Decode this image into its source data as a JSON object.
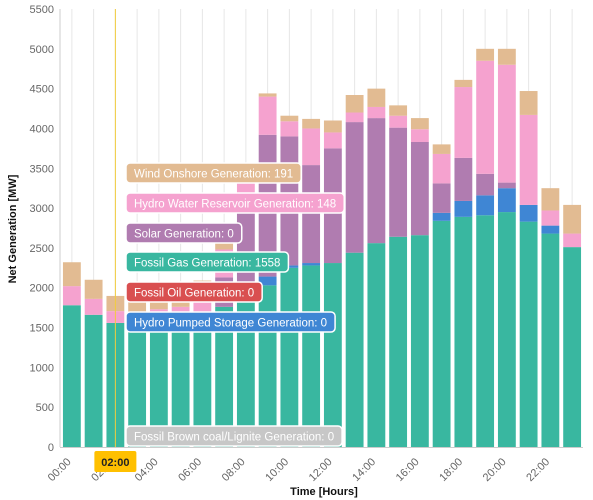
{
  "chart_data": {
    "type": "bar",
    "stacked": true,
    "xlabel": "Time [Hours]",
    "ylabel": "Net Generation [MW]",
    "ylim": [
      0,
      5500
    ],
    "yticks": [
      0,
      500,
      1000,
      1500,
      2000,
      2500,
      3000,
      3500,
      4000,
      4500,
      5000,
      5500
    ],
    "x_tick_labels": [
      "00:00",
      "02:00",
      "04:00",
      "06:00",
      "08:00",
      "10:00",
      "12:00",
      "14:00",
      "16:00",
      "18:00",
      "20:00",
      "22:00"
    ],
    "grid": "vertical",
    "cursor_label": "02:00",
    "categories": [
      "00:00",
      "01:00",
      "02:00",
      "03:00",
      "04:00",
      "05:00",
      "06:00",
      "07:00",
      "08:00",
      "09:00",
      "10:00",
      "11:00",
      "12:00",
      "13:00",
      "14:00",
      "15:00",
      "16:00",
      "17:00",
      "18:00",
      "19:00",
      "20:00",
      "21:00",
      "22:00",
      "23:00"
    ],
    "series": [
      {
        "name": "Fossil Brown coal/Lignite Generation",
        "color": "#c7c7c7",
        "values": [
          0,
          0,
          0,
          0,
          0,
          0,
          0,
          0,
          0,
          0,
          0,
          0,
          0,
          0,
          0,
          0,
          0,
          0,
          0,
          0,
          0,
          0,
          0,
          0
        ]
      },
      {
        "name": "Fossil Gas Generation",
        "color": "#39b7a0",
        "values": [
          1780,
          1660,
          1558,
          1560,
          1570,
          1590,
          1610,
          1760,
          1860,
          2030,
          2250,
          2280,
          2310,
          2440,
          2560,
          2640,
          2660,
          2840,
          2890,
          2910,
          2950,
          2830,
          2680,
          2510
        ]
      },
      {
        "name": "Fossil Oil Generation",
        "color": "#d94f50",
        "values": [
          0,
          0,
          0,
          0,
          0,
          0,
          0,
          0,
          0,
          0,
          0,
          0,
          0,
          0,
          0,
          0,
          0,
          0,
          0,
          0,
          0,
          0,
          0,
          0
        ]
      },
      {
        "name": "Hydro Pumped Storage Generation",
        "color": "#3f86d4",
        "values": [
          0,
          0,
          0,
          0,
          0,
          0,
          0,
          0,
          30,
          110,
          30,
          30,
          0,
          0,
          0,
          0,
          0,
          100,
          200,
          250,
          300,
          210,
          100,
          0
        ]
      },
      {
        "name": "Solar Generation",
        "color": "#b07cb0",
        "values": [
          0,
          0,
          0,
          0,
          0,
          0,
          20,
          370,
          1200,
          1780,
          1620,
          1230,
          1440,
          1640,
          1570,
          1370,
          1170,
          370,
          540,
          270,
          70,
          0,
          0,
          0
        ]
      },
      {
        "name": "Hydro Water Reservoir Generation",
        "color": "#f5a2cf",
        "values": [
          240,
          200,
          148,
          140,
          160,
          170,
          230,
          350,
          400,
          480,
          190,
          460,
          200,
          120,
          140,
          150,
          160,
          370,
          890,
          1420,
          1480,
          1130,
          190,
          170
        ]
      },
      {
        "name": "Wind Onshore Generation",
        "color": "#e2bb92",
        "values": [
          300,
          240,
          191,
          190,
          210,
          200,
          230,
          120,
          60,
          40,
          70,
          120,
          150,
          220,
          230,
          130,
          140,
          120,
          90,
          150,
          200,
          300,
          280,
          360
        ]
      }
    ]
  },
  "tooltip": {
    "items": [
      {
        "name": "Wind Onshore Generation",
        "value": "191",
        "color": "#e2bb92"
      },
      {
        "name": "Hydro Water Reservoir Generation",
        "value": "148",
        "color": "#f5a2cf"
      },
      {
        "name": "Solar Generation",
        "value": "0",
        "color": "#b07cb0"
      },
      {
        "name": "Fossil Gas Generation",
        "value": "1558",
        "color": "#39b7a0"
      },
      {
        "name": "Fossil Oil Generation",
        "value": "0",
        "color": "#d94f50"
      },
      {
        "name": "Hydro Pumped Storage Generation",
        "value": "0",
        "color": "#3f86d4"
      }
    ],
    "footer": {
      "name": "Fossil Brown coal/Lignite Generation",
      "value": "0",
      "color": "#c7c7c7"
    }
  },
  "colors": {
    "cursor": "#f2cc3c",
    "cursor_badge": "#ffc000",
    "grid": "#e6e6e6"
  }
}
